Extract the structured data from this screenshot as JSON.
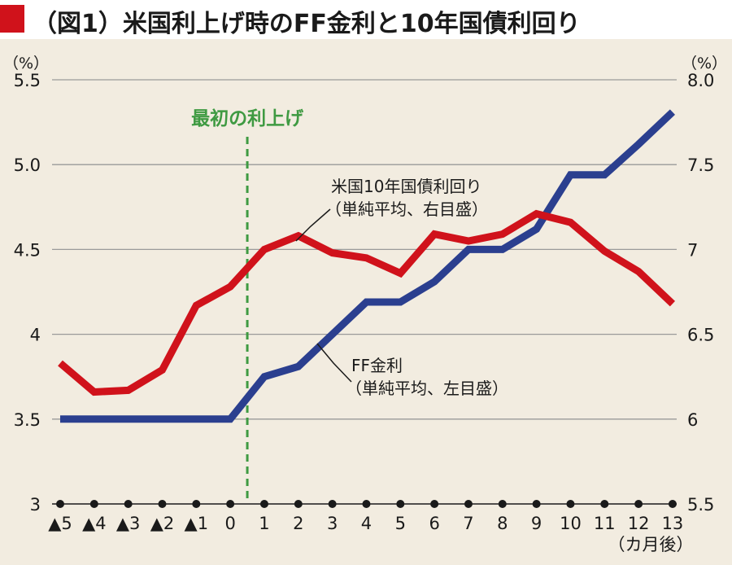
{
  "title": "（図1）米国利上げ時のFF金利と10年国債利回り",
  "colors": {
    "title_marker": "#d0121b",
    "ff_rate": "#2b3f8f",
    "treasury_10y": "#d0121b",
    "event_line": "#3f9a42",
    "grid": "#9a9a9a",
    "background": "#f2ece0"
  },
  "chart_data": {
    "type": "line",
    "x": [
      "▲5",
      "▲4",
      "▲3",
      "▲2",
      "▲1",
      "0",
      "1",
      "2",
      "3",
      "4",
      "5",
      "6",
      "7",
      "8",
      "9",
      "10",
      "11",
      "12",
      "13"
    ],
    "xlabel": "（カ月後）",
    "y_left": {
      "unit": "（%）",
      "range": [
        3,
        5.5
      ],
      "ticks": [
        "3",
        "3.5",
        "4",
        "4.5",
        "5.0",
        "5.5"
      ]
    },
    "y_right": {
      "unit": "（%）",
      "range": [
        5.5,
        8.0
      ],
      "ticks": [
        "5.5",
        "6",
        "6.5",
        "7",
        "7.5",
        "8.0"
      ]
    },
    "grid": true,
    "series": [
      {
        "name": "FF金利",
        "axis": "left",
        "values": [
          3.5,
          3.5,
          3.5,
          3.5,
          3.5,
          3.5,
          3.75,
          3.81,
          4.0,
          4.19,
          4.19,
          4.31,
          4.5,
          4.5,
          4.62,
          4.94,
          4.94,
          5.12,
          5.31
        ]
      },
      {
        "name": "米国10年国債利回り",
        "axis": "right",
        "values": [
          6.33,
          6.16,
          6.17,
          6.29,
          6.67,
          6.78,
          7.0,
          7.08,
          6.98,
          6.95,
          6.86,
          7.09,
          7.05,
          7.09,
          7.21,
          7.16,
          6.99,
          6.87,
          6.68
        ]
      }
    ],
    "annotations": {
      "event_label": "最初の利上げ",
      "event_x_months": 0.5,
      "treasury_label_line1": "米国10年国債利回り",
      "treasury_label_line2": "（単純平均、右目盛）",
      "ff_label_line1": "FF金利",
      "ff_label_line2": "（単純平均、左目盛）"
    }
  }
}
